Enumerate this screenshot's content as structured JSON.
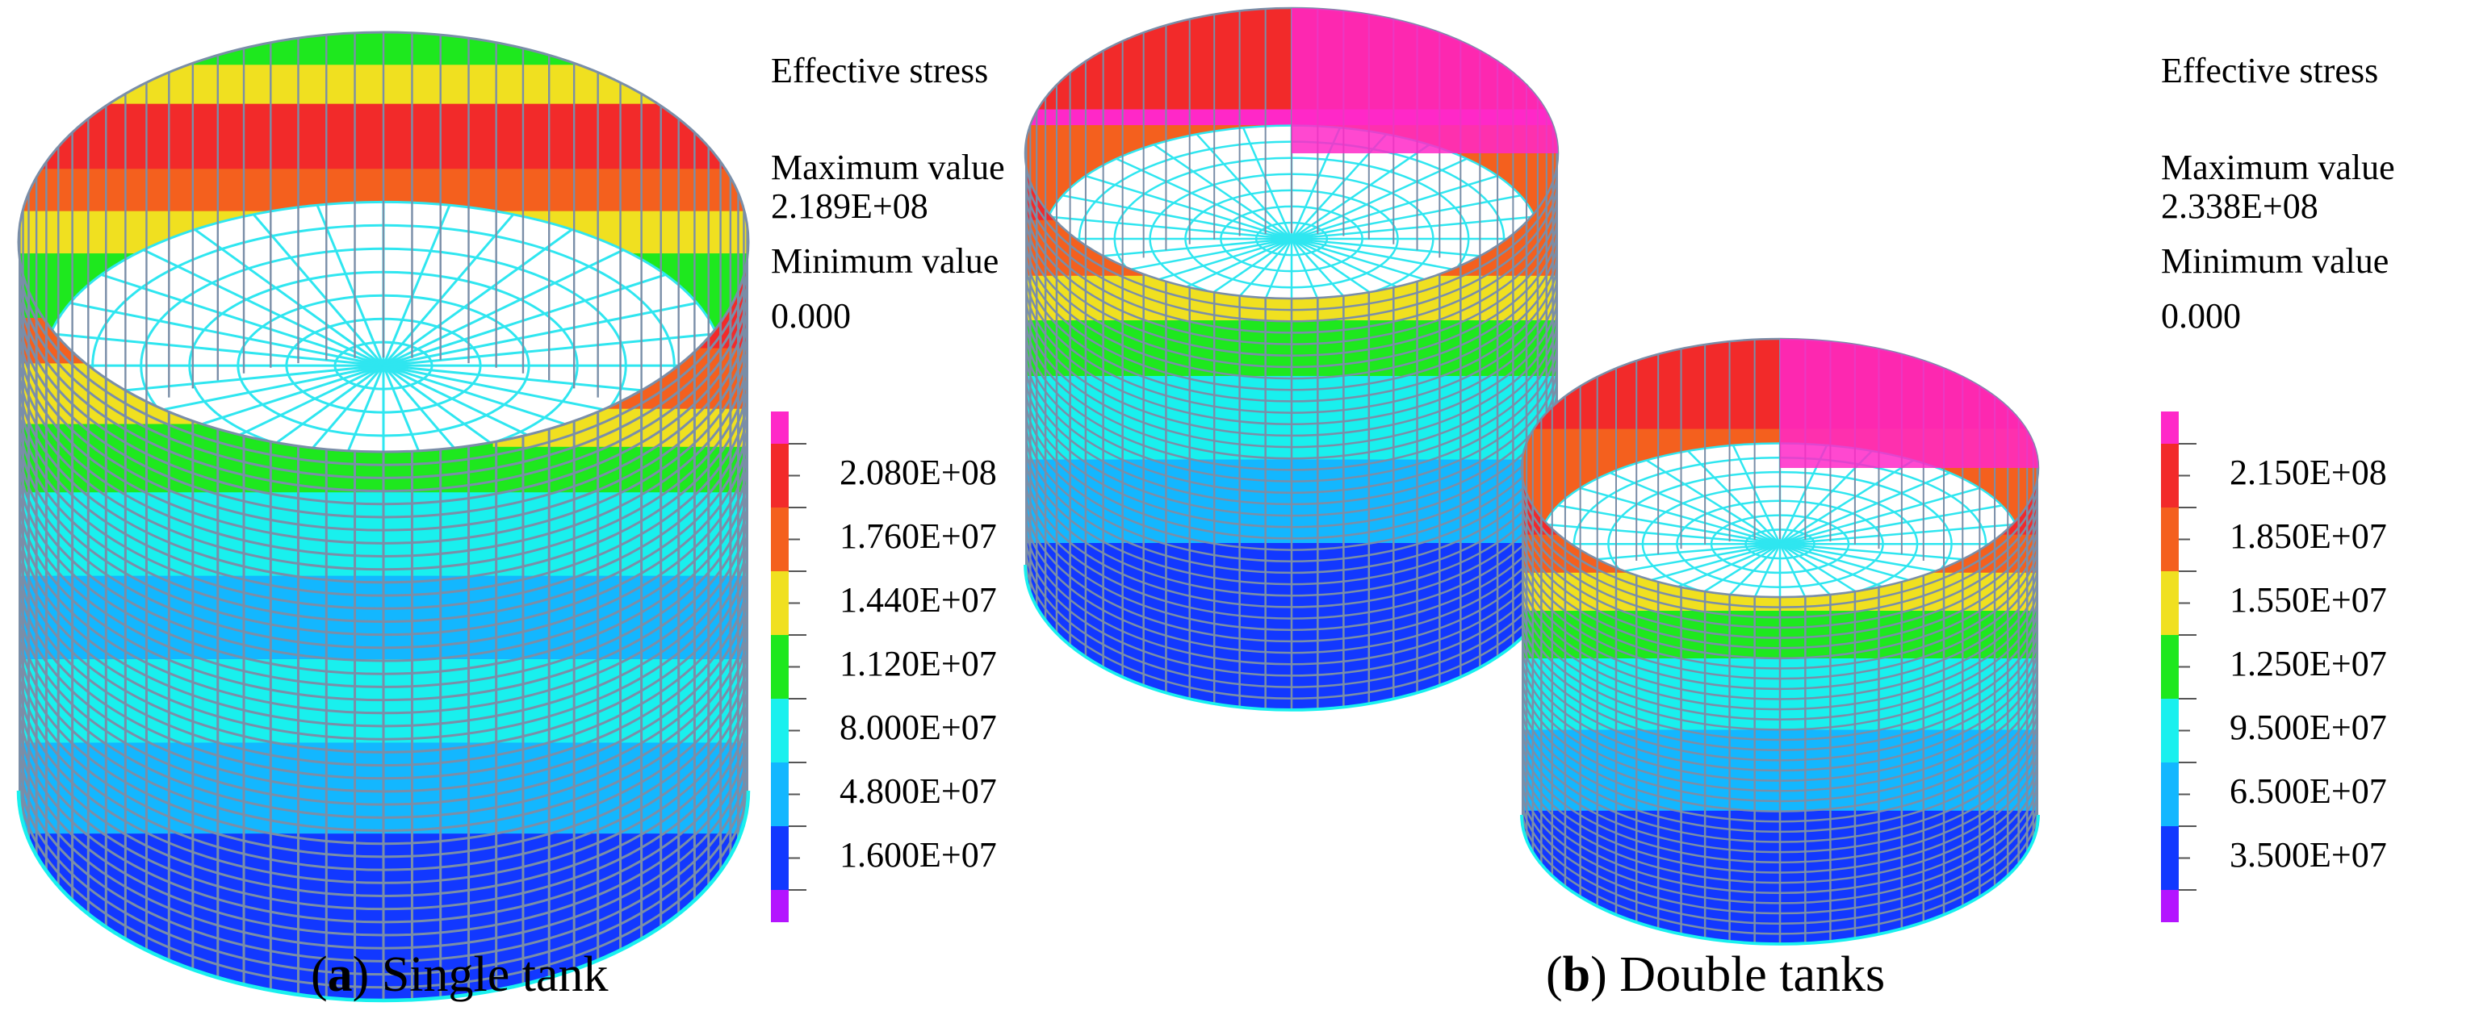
{
  "panels": [
    {
      "id": "a",
      "caption_letter": "a",
      "caption_text": " Single tank",
      "legend": {
        "title": "Effective stress",
        "max_label": "Maximum value",
        "max_value": "2.189E+08",
        "min_label": "Minimum value",
        "min_value": "0.000",
        "ticks": [
          "2.080E+08",
          "1.760E+07",
          "1.440E+07",
          "1.120E+07",
          "8.000E+07",
          "4.800E+07",
          "1.600E+07"
        ]
      }
    },
    {
      "id": "b",
      "caption_letter": "b",
      "caption_text": " Double tanks",
      "legend": {
        "title": "Effective stress",
        "max_label": "Maximum value",
        "max_value": "2.338E+08",
        "min_label": "Minimum value",
        "min_value": "0.000",
        "ticks": [
          "2.150E+08",
          "1.850E+07",
          "1.550E+07",
          "1.250E+07",
          "9.500E+07",
          "6.500E+07",
          "3.500E+07"
        ]
      }
    }
  ],
  "colors": {
    "magenta": "#ff28c8",
    "red": "#f22a2a",
    "orange": "#f4601e",
    "yellow": "#f0e020",
    "green": "#1ee81e",
    "cyan": "#19f0ee",
    "lightblue": "#13b7ff",
    "blue": "#1238ff",
    "violet": "#b414ff",
    "gridline": "#7a8ea8",
    "floor": "#2fe6f0"
  }
}
